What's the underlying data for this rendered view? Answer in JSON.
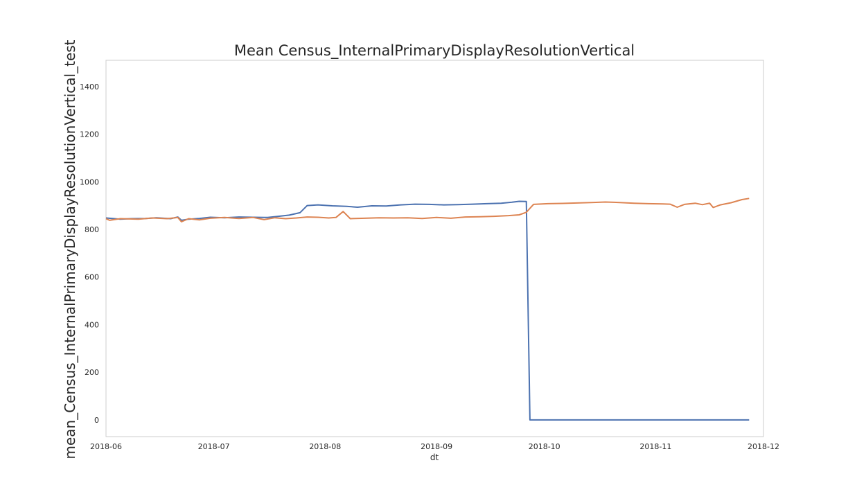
{
  "chart_data": {
    "type": "line",
    "title": "Mean Census_InternalPrimaryDisplayResolutionVertical",
    "xlabel": "dt",
    "ylabel": "mean_Census_InternalPrimaryDisplayResolutionVertical_test",
    "xlim": [
      "2018-06-01",
      "2018-12-01"
    ],
    "ylim": [
      -70,
      1510
    ],
    "x_ticks": [
      "2018-06",
      "2018-07",
      "2018-08",
      "2018-09",
      "2018-10",
      "2018-11",
      "2018-12"
    ],
    "y_ticks": [
      0,
      200,
      400,
      600,
      800,
      1000,
      1200,
      1400
    ],
    "grid": false,
    "legend": "none",
    "series": [
      {
        "color": "#4c72b0",
        "points": [
          [
            "2018-06-01",
            848
          ],
          [
            "2018-06-05",
            843
          ],
          [
            "2018-06-08",
            845
          ],
          [
            "2018-06-12",
            846
          ],
          [
            "2018-06-15",
            849
          ],
          [
            "2018-06-19",
            845
          ],
          [
            "2018-06-21",
            852
          ],
          [
            "2018-06-22",
            838
          ],
          [
            "2018-06-24",
            843
          ],
          [
            "2018-06-27",
            846
          ],
          [
            "2018-06-30",
            851
          ],
          [
            "2018-07-04",
            849
          ],
          [
            "2018-07-08",
            852
          ],
          [
            "2018-07-12",
            851
          ],
          [
            "2018-07-16",
            850
          ],
          [
            "2018-07-19",
            855
          ],
          [
            "2018-07-22",
            860
          ],
          [
            "2018-07-25",
            870
          ],
          [
            "2018-07-27",
            900
          ],
          [
            "2018-07-30",
            903
          ],
          [
            "2018-08-03",
            899
          ],
          [
            "2018-08-07",
            897
          ],
          [
            "2018-08-10",
            893
          ],
          [
            "2018-08-14",
            899
          ],
          [
            "2018-08-18",
            898
          ],
          [
            "2018-08-22",
            903
          ],
          [
            "2018-08-26",
            906
          ],
          [
            "2018-08-30",
            905
          ],
          [
            "2018-09-03",
            903
          ],
          [
            "2018-09-07",
            904
          ],
          [
            "2018-09-11",
            906
          ],
          [
            "2018-09-15",
            908
          ],
          [
            "2018-09-19",
            910
          ],
          [
            "2018-09-22",
            914
          ],
          [
            "2018-09-24",
            918
          ],
          [
            "2018-09-26",
            917
          ],
          [
            "2018-09-27",
            0
          ],
          [
            "2018-11-27",
            0
          ]
        ]
      },
      {
        "color": "#dd8452",
        "points": [
          [
            "2018-06-01",
            845
          ],
          [
            "2018-06-02",
            838
          ],
          [
            "2018-06-05",
            845
          ],
          [
            "2018-06-10",
            843
          ],
          [
            "2018-06-14",
            848
          ],
          [
            "2018-06-18",
            845
          ],
          [
            "2018-06-21",
            850
          ],
          [
            "2018-06-22",
            832
          ],
          [
            "2018-06-24",
            845
          ],
          [
            "2018-06-27",
            840
          ],
          [
            "2018-06-30",
            847
          ],
          [
            "2018-07-04",
            850
          ],
          [
            "2018-07-08",
            846
          ],
          [
            "2018-07-12",
            850
          ],
          [
            "2018-07-15",
            841
          ],
          [
            "2018-07-18",
            849
          ],
          [
            "2018-07-21",
            845
          ],
          [
            "2018-07-24",
            848
          ],
          [
            "2018-07-27",
            852
          ],
          [
            "2018-07-30",
            851
          ],
          [
            "2018-08-02",
            848
          ],
          [
            "2018-08-04",
            850
          ],
          [
            "2018-08-06",
            875
          ],
          [
            "2018-08-08",
            845
          ],
          [
            "2018-08-12",
            847
          ],
          [
            "2018-08-16",
            849
          ],
          [
            "2018-08-20",
            848
          ],
          [
            "2018-08-24",
            849
          ],
          [
            "2018-08-28",
            846
          ],
          [
            "2018-09-01",
            850
          ],
          [
            "2018-09-05",
            847
          ],
          [
            "2018-09-09",
            852
          ],
          [
            "2018-09-13",
            853
          ],
          [
            "2018-09-17",
            855
          ],
          [
            "2018-09-21",
            858
          ],
          [
            "2018-09-24",
            861
          ],
          [
            "2018-09-26",
            872
          ],
          [
            "2018-09-28",
            905
          ],
          [
            "2018-10-02",
            908
          ],
          [
            "2018-10-06",
            909
          ],
          [
            "2018-10-10",
            911
          ],
          [
            "2018-10-14",
            913
          ],
          [
            "2018-10-18",
            915
          ],
          [
            "2018-10-22",
            913
          ],
          [
            "2018-10-26",
            910
          ],
          [
            "2018-10-30",
            908
          ],
          [
            "2018-11-03",
            907
          ],
          [
            "2018-11-05",
            906
          ],
          [
            "2018-11-07",
            893
          ],
          [
            "2018-11-09",
            905
          ],
          [
            "2018-11-12",
            910
          ],
          [
            "2018-11-14",
            904
          ],
          [
            "2018-11-16",
            910
          ],
          [
            "2018-11-17",
            892
          ],
          [
            "2018-11-19",
            903
          ],
          [
            "2018-11-22",
            912
          ],
          [
            "2018-11-25",
            925
          ],
          [
            "2018-11-27",
            930
          ]
        ]
      }
    ]
  }
}
